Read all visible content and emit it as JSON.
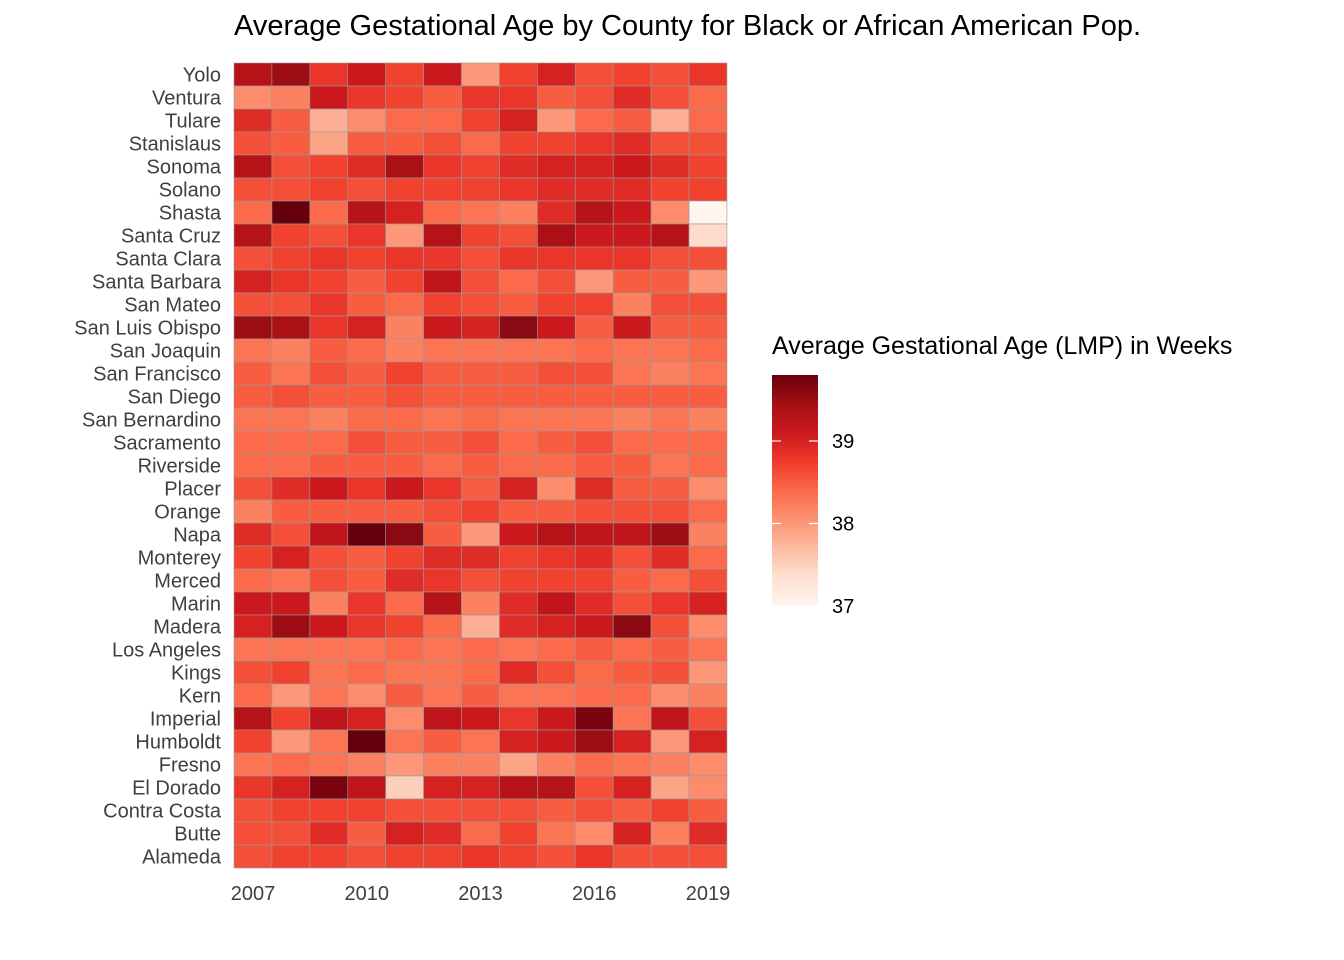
{
  "chart_data": {
    "type": "heatmap",
    "title": "Average Gestational Age by County for Black or African American Pop.",
    "xlabel": "",
    "ylabel": "",
    "x": [
      2007,
      2008,
      2009,
      2010,
      2011,
      2012,
      2013,
      2014,
      2015,
      2016,
      2017,
      2018,
      2019
    ],
    "x_tick_labels": [
      "2007",
      "2010",
      "2013",
      "2016",
      "2019"
    ],
    "x_tick_values": [
      2007,
      2010,
      2013,
      2016,
      2019
    ],
    "y": [
      "Yolo",
      "Ventura",
      "Tulare",
      "Stanislaus",
      "Sonoma",
      "Solano",
      "Shasta",
      "Santa Cruz",
      "Santa Clara",
      "Santa Barbara",
      "San Mateo",
      "San Luis Obispo",
      "San Joaquin",
      "San Francisco",
      "San Diego",
      "San Bernardino",
      "Sacramento",
      "Riverside",
      "Placer",
      "Orange",
      "Napa",
      "Monterey",
      "Merced",
      "Marin",
      "Madera",
      "Los Angeles",
      "Kings",
      "Kern",
      "Imperial",
      "Humboldt",
      "Fresno",
      "El Dorado",
      "Contra Costa",
      "Butte",
      "Alameda"
    ],
    "z": [
      [
        39.3,
        39.5,
        38.8,
        39.1,
        38.7,
        39.1,
        38.0,
        38.7,
        39.0,
        38.6,
        38.7,
        38.6,
        38.8
      ],
      [
        38.1,
        38.2,
        39.1,
        38.8,
        38.7,
        38.5,
        38.8,
        38.8,
        38.5,
        38.6,
        38.9,
        38.6,
        38.4
      ],
      [
        38.9,
        38.5,
        37.8,
        38.1,
        38.4,
        38.4,
        38.7,
        39.0,
        38.0,
        38.4,
        38.5,
        37.8,
        38.4
      ],
      [
        38.6,
        38.5,
        37.9,
        38.5,
        38.5,
        38.6,
        38.4,
        38.7,
        38.7,
        38.8,
        38.9,
        38.6,
        38.6
      ],
      [
        39.3,
        38.6,
        38.7,
        38.9,
        39.4,
        38.8,
        38.7,
        38.9,
        39.0,
        39.0,
        39.1,
        38.9,
        38.7
      ],
      [
        38.6,
        38.6,
        38.7,
        38.6,
        38.7,
        38.7,
        38.7,
        38.8,
        38.9,
        38.9,
        38.9,
        38.7,
        38.7
      ],
      [
        38.4,
        39.8,
        38.4,
        39.3,
        39.0,
        38.4,
        38.3,
        38.2,
        38.9,
        39.3,
        39.1,
        38.1,
        37.0
      ],
      [
        39.3,
        38.7,
        38.6,
        38.8,
        38.0,
        39.3,
        38.7,
        38.6,
        39.4,
        39.1,
        39.1,
        39.3,
        37.4
      ],
      [
        38.6,
        38.7,
        38.8,
        38.7,
        38.8,
        38.8,
        38.6,
        38.8,
        38.8,
        38.8,
        38.8,
        38.6,
        38.6
      ],
      [
        39.0,
        38.8,
        38.7,
        38.5,
        38.7,
        39.2,
        38.6,
        38.4,
        38.6,
        38.0,
        38.5,
        38.5,
        38.0
      ],
      [
        38.6,
        38.6,
        38.8,
        38.5,
        38.4,
        38.7,
        38.6,
        38.5,
        38.7,
        38.7,
        38.2,
        38.6,
        38.6
      ],
      [
        39.5,
        39.4,
        38.8,
        39.0,
        38.2,
        39.1,
        39.0,
        39.6,
        39.1,
        38.5,
        39.1,
        38.5,
        38.5
      ],
      [
        38.3,
        38.2,
        38.5,
        38.4,
        38.2,
        38.3,
        38.3,
        38.3,
        38.3,
        38.4,
        38.3,
        38.3,
        38.4
      ],
      [
        38.5,
        38.3,
        38.6,
        38.5,
        38.7,
        38.5,
        38.5,
        38.5,
        38.6,
        38.6,
        38.3,
        38.2,
        38.3
      ],
      [
        38.5,
        38.6,
        38.5,
        38.5,
        38.6,
        38.5,
        38.5,
        38.5,
        38.5,
        38.5,
        38.5,
        38.5,
        38.5
      ],
      [
        38.3,
        38.3,
        38.2,
        38.4,
        38.4,
        38.3,
        38.4,
        38.3,
        38.3,
        38.3,
        38.2,
        38.3,
        38.2
      ],
      [
        38.4,
        38.4,
        38.4,
        38.6,
        38.5,
        38.5,
        38.6,
        38.4,
        38.5,
        38.6,
        38.4,
        38.4,
        38.4
      ],
      [
        38.4,
        38.4,
        38.5,
        38.5,
        38.5,
        38.4,
        38.5,
        38.4,
        38.4,
        38.5,
        38.5,
        38.3,
        38.4
      ],
      [
        38.6,
        38.9,
        39.1,
        38.8,
        39.1,
        38.8,
        38.5,
        39.0,
        38.1,
        38.9,
        38.5,
        38.5,
        38.1
      ],
      [
        38.2,
        38.5,
        38.5,
        38.5,
        38.5,
        38.6,
        38.7,
        38.5,
        38.5,
        38.6,
        38.6,
        38.6,
        38.4
      ],
      [
        38.9,
        38.6,
        39.2,
        39.8,
        39.6,
        38.5,
        38.0,
        39.1,
        39.3,
        39.2,
        39.2,
        39.5,
        38.2
      ],
      [
        38.7,
        39.0,
        38.6,
        38.5,
        38.7,
        38.9,
        38.9,
        38.7,
        38.8,
        38.9,
        38.6,
        38.9,
        38.4
      ],
      [
        38.4,
        38.3,
        38.6,
        38.5,
        38.9,
        38.8,
        38.6,
        38.7,
        38.7,
        38.7,
        38.5,
        38.4,
        38.6
      ],
      [
        39.1,
        39.1,
        38.2,
        38.8,
        38.4,
        39.3,
        38.2,
        38.9,
        39.2,
        38.9,
        38.6,
        38.8,
        39.0
      ],
      [
        39.0,
        39.5,
        39.1,
        38.8,
        38.7,
        38.4,
        37.8,
        38.9,
        39.0,
        39.1,
        39.6,
        38.6,
        38.1
      ],
      [
        38.3,
        38.3,
        38.3,
        38.3,
        38.4,
        38.3,
        38.4,
        38.3,
        38.4,
        38.5,
        38.4,
        38.5,
        38.3
      ],
      [
        38.6,
        38.7,
        38.3,
        38.4,
        38.3,
        38.3,
        38.4,
        38.9,
        38.6,
        38.4,
        38.5,
        38.6,
        38.0
      ],
      [
        38.4,
        38.0,
        38.3,
        38.1,
        38.5,
        38.3,
        38.5,
        38.3,
        38.3,
        38.4,
        38.4,
        38.1,
        38.2
      ],
      [
        39.3,
        38.7,
        39.2,
        39.0,
        38.1,
        39.2,
        39.1,
        38.8,
        39.1,
        39.7,
        38.3,
        39.2,
        38.6
      ],
      [
        38.7,
        38.0,
        38.3,
        39.8,
        38.3,
        38.5,
        38.3,
        39.0,
        39.1,
        39.5,
        39.0,
        38.0,
        39.0
      ],
      [
        38.3,
        38.4,
        38.3,
        38.2,
        38.0,
        38.2,
        38.2,
        37.9,
        38.2,
        38.4,
        38.3,
        38.2,
        38.1
      ],
      [
        38.8,
        39.0,
        39.7,
        39.2,
        37.5,
        39.0,
        39.0,
        39.3,
        39.3,
        38.6,
        39.0,
        37.9,
        38.1
      ],
      [
        38.6,
        38.7,
        38.7,
        38.7,
        38.6,
        38.6,
        38.6,
        38.6,
        38.5,
        38.6,
        38.5,
        38.7,
        38.5
      ],
      [
        38.6,
        38.6,
        38.9,
        38.5,
        39.0,
        38.9,
        38.4,
        38.7,
        38.3,
        38.1,
        39.0,
        38.2,
        38.9
      ],
      [
        38.6,
        38.7,
        38.7,
        38.6,
        38.7,
        38.7,
        38.8,
        38.7,
        38.6,
        38.8,
        38.6,
        38.6,
        38.6
      ]
    ],
    "legend": {
      "title": "Average Gestational Age (LMP) in Weeks",
      "ticks": [
        37,
        38,
        39
      ],
      "tick_labels": [
        "37",
        "38",
        "39"
      ],
      "range": [
        37,
        39.8
      ],
      "placement": "right"
    },
    "colorscale": [
      "#fff5f0",
      "#fee0d2",
      "#fcbba1",
      "#fc9272",
      "#fb6a4a",
      "#ef3b2c",
      "#cb181d",
      "#a50f15",
      "#67000d"
    ],
    "cell_border_color": "#999999",
    "grid": false
  }
}
